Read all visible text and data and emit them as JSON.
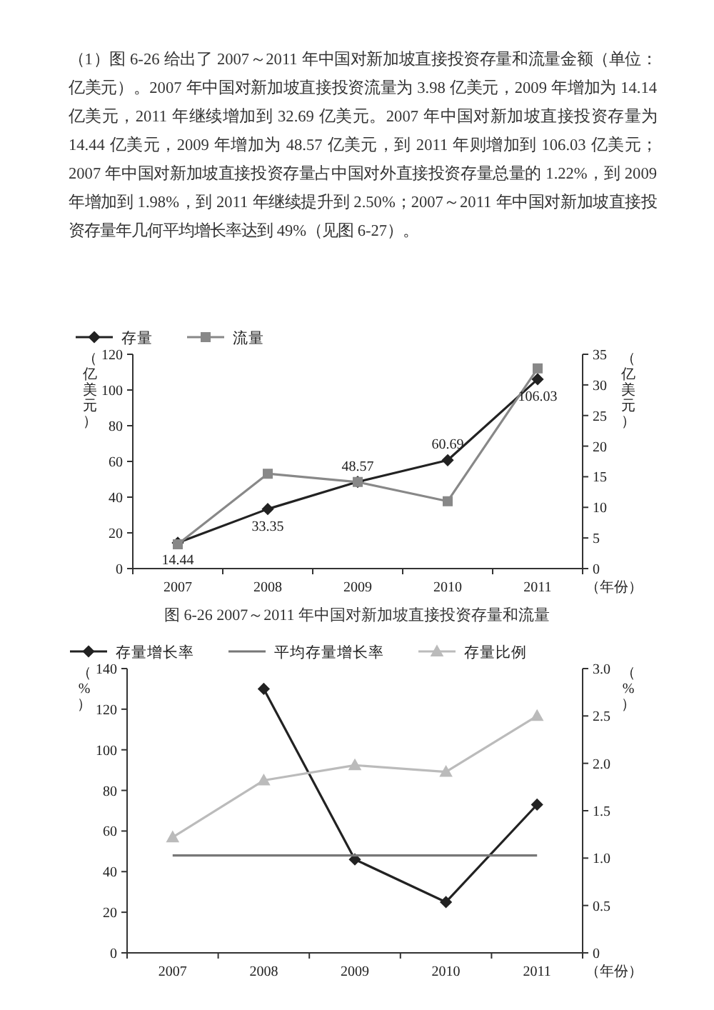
{
  "chart_data": [
    {
      "type": "line",
      "title": "图 6-26  2007～2011 年中国对新加坡直接投资存量和流量",
      "annotations": [
        "（1）图 6-26 给出了 2007～2011 年中国对新加坡直接投资存量和流量金额（单位：亿美元）。2007 年中国对新加坡直接投资流量为 3.98 亿美元，2009 年增加为 14.14 亿美元，2011 年继续增加到 32.69 亿美元。2007 年中国对新加坡直接投资存量为 14.44 亿美元，2009 年增加为 48.57 亿美元，到 2011 年则增加到 106.03 亿美元；2007 年中国对新加坡直接投资存量占中国对外直接投资存量总量的 1.22%，到 2009 年增加到 1.98%，到 2011 年继续提升到 2.50%；2007～2011 年中国对新加坡直接投资存量年几何平均增长率达到 49%（见图 6-27）。"
      ],
      "categories": [
        "2007",
        "2008",
        "2009",
        "2010",
        "2011"
      ],
      "xlabel": "（年份）",
      "ylabel": "（亿美元）",
      "y2label": "（亿美元）",
      "ylim": [
        0,
        120
      ],
      "yticks": [
        0,
        20,
        40,
        60,
        80,
        100,
        120
      ],
      "y2lim": [
        0,
        35
      ],
      "y2ticks": [
        0,
        5,
        10,
        15,
        20,
        25,
        30,
        35
      ],
      "legend": "top left",
      "series": [
        {
          "name": "存量",
          "color": "#222222",
          "marker": "diamond",
          "values": [
            14.44,
            33.35,
            48.57,
            60.69,
            106.03
          ],
          "value_labels": [
            "14.44",
            "33.35",
            "48.57",
            "60.69",
            "106.03"
          ]
        },
        {
          "name": "流量",
          "color": "#888888",
          "marker": "square",
          "axis": "y2",
          "values": [
            3.98,
            15.5,
            14.14,
            11,
            32.69
          ]
        }
      ]
    },
    {
      "type": "line",
      "categories": [
        "2007",
        "2008",
        "2009",
        "2010",
        "2011"
      ],
      "xlabel": "（年份）",
      "ylabel": "（%）",
      "y2label": "（%）",
      "ylim": [
        0,
        140
      ],
      "yticks": [
        0,
        20,
        40,
        60,
        80,
        100,
        120,
        140
      ],
      "y2lim": [
        0,
        3
      ],
      "y2ticks": [
        0,
        {
          "value": 0.5,
          "label": "0.5"
        },
        {
          "value": 1,
          "label": "1.0"
        },
        {
          "value": 1.5,
          "label": "1.5"
        },
        {
          "value": 2,
          "label": "2.0"
        },
        {
          "value": 2.5,
          "label": "2.5"
        },
        {
          "value": 3,
          "label": "3.0"
        }
      ],
      "legend": "top left",
      "series": [
        {
          "name": "存量增长率",
          "color": "#222222",
          "marker": "diamond",
          "values": [
            null,
            130,
            46,
            25,
            73
          ]
        },
        {
          "name": "平均存量增长率",
          "color": "#777777",
          "marker": "none",
          "values": [
            48,
            48,
            48,
            48,
            48
          ]
        },
        {
          "name": "存量比例",
          "color": "#bbbbbb",
          "marker": "triangle",
          "axis": "y2",
          "values": [
            1.22,
            1.82,
            1.98,
            1.91,
            2.5
          ]
        }
      ]
    }
  ]
}
